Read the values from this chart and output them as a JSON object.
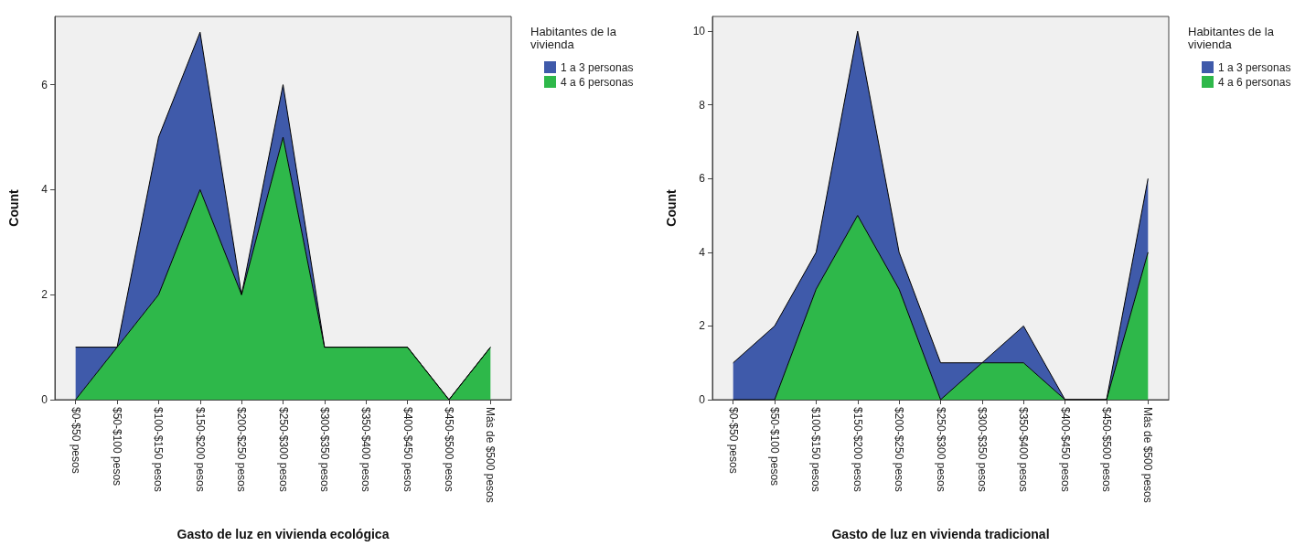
{
  "chart_data": [
    {
      "type": "area",
      "stacked": true,
      "xlabel": "Gasto de luz en vivienda ecológica",
      "ylabel": "Count",
      "legend_title": "Habitantes de la vivienda",
      "categories": [
        "$0-$50 pesos",
        "$50-$100 pesos",
        "$100-$150 pesos",
        "$150-$200 pesos",
        "$200-$250 pesos",
        "$250-$300 pesos",
        "$300-$350 pesos",
        "$350-$400 pesos",
        "$400-$450 pesos",
        "$450-$500 pesos",
        "Más de $500 pesos"
      ],
      "series": [
        {
          "name": "4 a 6 personas",
          "color": "#2eb84a",
          "values": [
            0,
            1,
            2,
            4,
            2,
            5,
            1,
            1,
            1,
            0,
            1
          ]
        },
        {
          "name": "1 a 3 personas",
          "color": "#3f5aaa",
          "values": [
            1,
            0,
            3,
            3,
            0,
            1,
            0,
            0,
            0,
            0,
            0
          ]
        }
      ],
      "ylim": [
        0,
        7.3
      ],
      "yticks": [
        0,
        2,
        4,
        6
      ],
      "grid": false,
      "legend": "right",
      "marker": "none"
    },
    {
      "type": "area",
      "stacked": true,
      "xlabel": "Gasto de luz en vivienda tradicional",
      "ylabel": "Count",
      "legend_title": "Habitantes de la vivienda",
      "categories": [
        "$0-$50 pesos",
        "$50-$100 pesos",
        "$100-$150 pesos",
        "$150-$200 pesos",
        "$200-$250 pesos",
        "$250-$300 pesos",
        "$300-$350 pesos",
        "$350-$400 pesos",
        "$400-$450 pesos",
        "$450-$500 pesos",
        "Más de $500 pesos"
      ],
      "series": [
        {
          "name": "4 a 6 personas",
          "color": "#2eb84a",
          "values": [
            0,
            0,
            3,
            5,
            3,
            0,
            1,
            1,
            0,
            0,
            4
          ]
        },
        {
          "name": "1 a 3 personas",
          "color": "#3f5aaa",
          "values": [
            1,
            2,
            1,
            5,
            1,
            1,
            0,
            1,
            0,
            0,
            2
          ]
        }
      ],
      "ylim": [
        0,
        10.4
      ],
      "yticks": [
        0,
        2,
        4,
        6,
        8,
        10
      ],
      "grid": false,
      "legend": "right",
      "marker": "none"
    }
  ]
}
